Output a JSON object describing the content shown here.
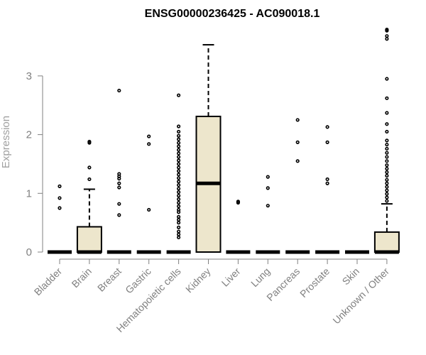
{
  "chart_data": {
    "type": "boxplot",
    "title": "ENSG00000236425 - AC090018.1",
    "xlabel": "",
    "ylabel": "Expression",
    "ylim": [
      0,
      3.8
    ],
    "yticks": [
      0,
      1,
      2,
      3
    ],
    "box_fill": "#ede6cc",
    "categories": [
      "Bladder",
      "Brain",
      "Breast",
      "Gastric",
      "Hematopoietic cells",
      "Kidney",
      "Liver",
      "Lung",
      "Pancreas",
      "Prostate",
      "Skin",
      "Unknown / Other"
    ],
    "boxes": [
      {
        "q1": 0,
        "median": 0,
        "q3": 0,
        "whisker_low": 0,
        "whisker_high": 0,
        "outliers": [
          0.75,
          0.92,
          1.12
        ]
      },
      {
        "q1": 0,
        "median": 0,
        "q3": 0.43,
        "whisker_low": 0,
        "whisker_high": 1.07,
        "outliers": [
          1.24,
          1.44,
          1.86,
          1.88
        ]
      },
      {
        "q1": 0,
        "median": 0,
        "q3": 0,
        "whisker_low": 0,
        "whisker_high": 0,
        "outliers": [
          0.63,
          0.82,
          1.1,
          1.17,
          1.25,
          1.29,
          1.33,
          2.75
        ]
      },
      {
        "q1": 0,
        "median": 0,
        "q3": 0,
        "whisker_low": 0,
        "whisker_high": 0,
        "outliers": [
          0.72,
          1.84,
          1.97
        ]
      },
      {
        "q1": 0,
        "median": 0,
        "q3": 0,
        "whisker_low": 0,
        "whisker_high": 0,
        "outliers": [
          0.25,
          0.3,
          0.35,
          0.42,
          0.5,
          0.55,
          0.6,
          0.68,
          0.72,
          0.78,
          0.84,
          0.9,
          0.96,
          1.02,
          1.08,
          1.14,
          1.2,
          1.26,
          1.32,
          1.38,
          1.44,
          1.5,
          1.56,
          1.62,
          1.68,
          1.74,
          1.8,
          1.86,
          1.92,
          1.98,
          2.05,
          2.14,
          2.67
        ]
      },
      {
        "q1": 0,
        "median": 1.17,
        "q3": 2.31,
        "whisker_low": 0,
        "whisker_high": 3.53,
        "outliers": []
      },
      {
        "q1": 0,
        "median": 0,
        "q3": 0,
        "whisker_low": 0,
        "whisker_high": 0,
        "outliers": [
          0.84,
          0.86
        ]
      },
      {
        "q1": 0,
        "median": 0,
        "q3": 0,
        "whisker_low": 0,
        "whisker_high": 0,
        "outliers": [
          0.79,
          1.09,
          1.28
        ]
      },
      {
        "q1": 0,
        "median": 0,
        "q3": 0,
        "whisker_low": 0,
        "whisker_high": 0,
        "outliers": [
          1.55,
          1.87,
          2.25
        ]
      },
      {
        "q1": 0,
        "median": 0,
        "q3": 0,
        "whisker_low": 0,
        "whisker_high": 0,
        "outliers": [
          1.17,
          1.24,
          1.87,
          2.13
        ]
      },
      {
        "q1": 0,
        "median": 0,
        "q3": 0,
        "whisker_low": 0,
        "whisker_high": 0,
        "outliers": []
      },
      {
        "q1": 0,
        "median": 0,
        "q3": 0.34,
        "whisker_low": 0,
        "whisker_high": 0.82,
        "outliers": [
          0.87,
          0.93,
          0.99,
          1.05,
          1.11,
          1.17,
          1.23,
          1.3,
          1.36,
          1.42,
          1.48,
          1.55,
          1.62,
          1.69,
          1.76,
          1.83,
          1.9,
          2.05,
          2.18,
          2.37,
          2.62,
          2.95,
          3.63,
          3.68,
          3.77,
          3.79
        ]
      }
    ]
  }
}
